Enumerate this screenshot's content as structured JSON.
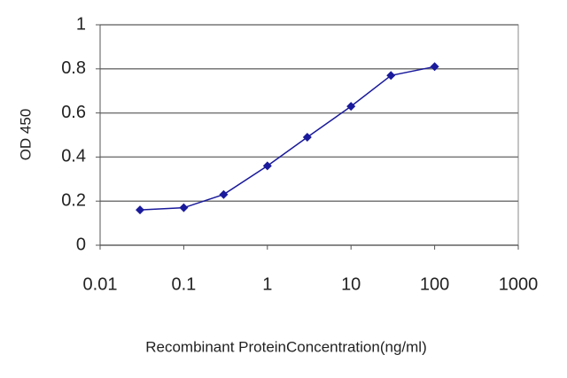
{
  "chart_data": {
    "type": "line",
    "x_label": "Recombinant ProteinConcentration(ng/ml)",
    "y_label": "OD 450",
    "x": [
      0.03,
      0.1,
      0.3,
      1,
      3,
      10,
      30,
      100
    ],
    "series": [
      {
        "name": "OD 450",
        "color": "#1a1a9c",
        "values": [
          0.16,
          0.17,
          0.23,
          0.36,
          0.49,
          0.63,
          0.77,
          0.81
        ]
      }
    ],
    "xscale": "log",
    "xlim": [
      0.01,
      1000
    ],
    "xticks": [
      0.01,
      0.1,
      1,
      10,
      100,
      1000
    ],
    "ylim": [
      0,
      1
    ],
    "yticks": [
      0,
      0.2,
      0.4,
      0.6,
      0.8,
      1
    ],
    "grid": true
  }
}
